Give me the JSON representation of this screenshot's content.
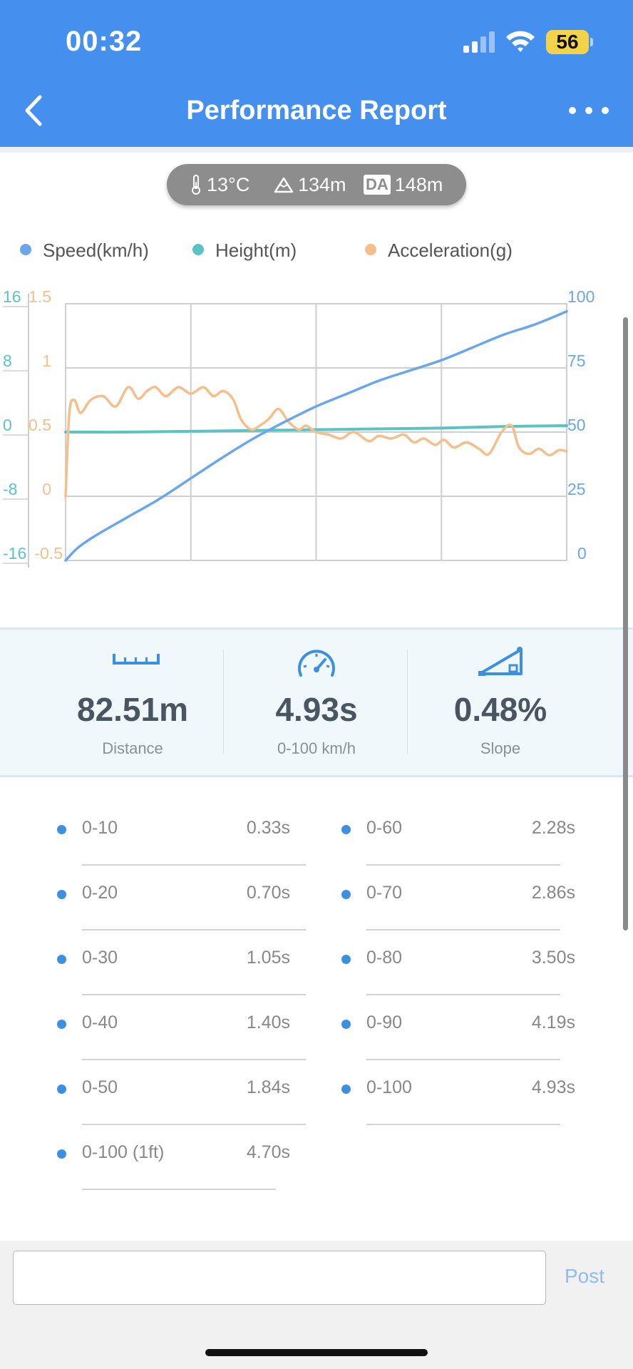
{
  "status_bar": {
    "time": "00:32",
    "battery": "56"
  },
  "nav": {
    "title": "Performance Report"
  },
  "environment": {
    "temperature": "13°C",
    "altitude": "134m",
    "da_badge": "DA",
    "density_altitude": "148m"
  },
  "legend": [
    {
      "label": "Speed(km/h)",
      "color": "#6ba6ea"
    },
    {
      "label": "Height(m)",
      "color": "#5bc3c3"
    },
    {
      "label": "Acceleration(g)",
      "color": "#f5bf8c"
    }
  ],
  "chart_data": {
    "type": "line",
    "x_range": [
      0,
      4
    ],
    "axes": {
      "height_ticks": [
        "16",
        "8",
        "0",
        "-8",
        "-16"
      ],
      "acceleration_ticks": [
        "1.5",
        "1",
        "0.5",
        "0",
        "-0.5"
      ],
      "speed_ticks": [
        "100",
        "75",
        "50",
        "25",
        "0"
      ],
      "height_range": [
        -16,
        16
      ],
      "acceleration_range": [
        -0.5,
        1.5
      ],
      "speed_range": [
        0,
        100
      ]
    },
    "grid": true,
    "legend_position": "top",
    "series": [
      {
        "name": "Speed(km/h)",
        "axis": "speed",
        "color": "#6ba6ea",
        "x": [
          0,
          0.1,
          0.25,
          0.5,
          0.75,
          1.0,
          1.25,
          1.5,
          1.75,
          2.0,
          2.25,
          2.5,
          2.75,
          3.0,
          3.25,
          3.5,
          3.75,
          4.0
        ],
        "y": [
          0,
          5,
          10,
          17,
          24,
          32,
          40,
          47.5,
          54,
          60,
          65,
          70,
          74,
          78,
          83,
          88,
          92,
          97
        ]
      },
      {
        "name": "Height(m)",
        "axis": "height",
        "color": "#5bc3c3",
        "x": [
          0,
          0.5,
          1.0,
          1.5,
          2.0,
          2.5,
          3.0,
          3.5,
          4.0
        ],
        "y": [
          0,
          0,
          0.1,
          0.2,
          0.3,
          0.4,
          0.5,
          0.7,
          0.8
        ]
      },
      {
        "name": "Acceleration(g)",
        "axis": "acceleration",
        "color": "#f5bf8c",
        "x": [
          0,
          0.03,
          0.07,
          0.12,
          0.2,
          0.3,
          0.4,
          0.5,
          0.58,
          0.65,
          0.72,
          0.8,
          0.9,
          1.0,
          1.1,
          1.18,
          1.26,
          1.34,
          1.4,
          1.48,
          1.55,
          1.62,
          1.7,
          1.78,
          1.86,
          1.92,
          2.0,
          2.1,
          2.2,
          2.3,
          2.42,
          2.5,
          2.6,
          2.7,
          2.78,
          2.86,
          2.95,
          3.02,
          3.1,
          3.2,
          3.3,
          3.38,
          3.48,
          3.56,
          3.62,
          3.7,
          3.78,
          3.86,
          3.94,
          4.0
        ],
        "y": [
          0,
          0.65,
          0.75,
          0.65,
          0.75,
          0.78,
          0.7,
          0.85,
          0.76,
          0.82,
          0.85,
          0.78,
          0.85,
          0.8,
          0.85,
          0.78,
          0.82,
          0.75,
          0.6,
          0.52,
          0.55,
          0.6,
          0.68,
          0.58,
          0.52,
          0.55,
          0.5,
          0.48,
          0.45,
          0.5,
          0.43,
          0.47,
          0.45,
          0.48,
          0.42,
          0.45,
          0.4,
          0.44,
          0.38,
          0.42,
          0.37,
          0.33,
          0.5,
          0.55,
          0.38,
          0.33,
          0.37,
          0.32,
          0.36,
          0.35
        ]
      }
    ]
  },
  "stats": [
    {
      "value": "82.51m",
      "label": "Distance",
      "icon": "ruler-icon"
    },
    {
      "value": "4.93s",
      "label": "0-100 km/h",
      "icon": "speedometer-icon"
    },
    {
      "value": "0.48%",
      "label": "Slope",
      "icon": "slope-icon"
    }
  ],
  "splits": [
    {
      "range": "0-10",
      "time": "0.33s"
    },
    {
      "range": "0-60",
      "time": "2.28s"
    },
    {
      "range": "0-20",
      "time": "0.70s"
    },
    {
      "range": "0-70",
      "time": "2.86s"
    },
    {
      "range": "0-30",
      "time": "1.05s"
    },
    {
      "range": "0-80",
      "time": "3.50s"
    },
    {
      "range": "0-40",
      "time": "1.40s"
    },
    {
      "range": "0-90",
      "time": "4.19s"
    },
    {
      "range": "0-50",
      "time": "1.84s"
    },
    {
      "range": "0-100",
      "time": "4.93s"
    },
    {
      "range": "0-100 (1ft)",
      "time": "4.70s"
    }
  ],
  "comment": {
    "value": "",
    "post_label": "Post"
  }
}
